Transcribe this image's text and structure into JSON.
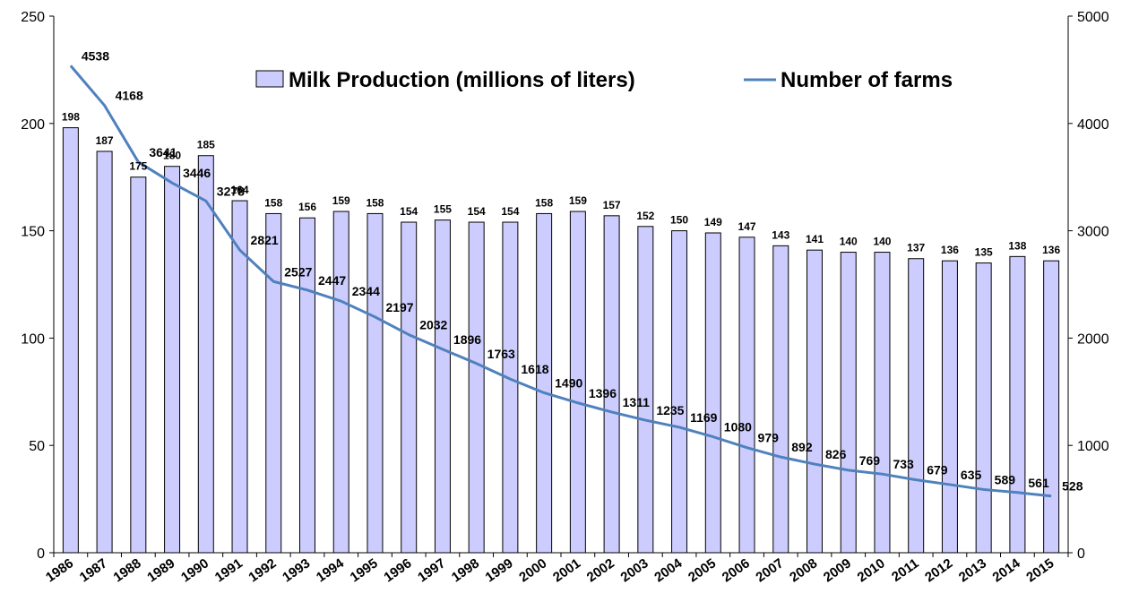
{
  "chart_data": {
    "type": "bar+line",
    "categories": [
      "1986",
      "1987",
      "1988",
      "1989",
      "1990",
      "1991",
      "1992",
      "1993",
      "1994",
      "1995",
      "1996",
      "1997",
      "1998",
      "1999",
      "2000",
      "2001",
      "2002",
      "2003",
      "2004",
      "2005",
      "2006",
      "2007",
      "2008",
      "2009",
      "2010",
      "2011",
      "2012",
      "2013",
      "2014",
      "2015"
    ],
    "series": [
      {
        "name": "Milk Production (millions of liters)",
        "type": "bar",
        "axis": "left",
        "color": "#ccccff",
        "values": [
          198,
          187,
          175,
          180,
          185,
          164,
          158,
          156,
          159,
          158,
          154,
          155,
          154,
          154,
          158,
          159,
          157,
          152,
          150,
          149,
          147,
          143,
          141,
          140,
          140,
          137,
          136,
          135,
          138,
          136
        ]
      },
      {
        "name": "Number of farms",
        "type": "line",
        "axis": "right",
        "color": "#4f81bd",
        "values": [
          4538,
          4168,
          3641,
          3446,
          3278,
          2821,
          2527,
          2447,
          2344,
          2197,
          2032,
          1896,
          1763,
          1618,
          1490,
          1396,
          1311,
          1235,
          1169,
          1080,
          979,
          892,
          826,
          769,
          733,
          679,
          635,
          589,
          561,
          528
        ]
      }
    ],
    "y_left": {
      "min": 0,
      "max": 250,
      "ticks": [
        "0",
        "50",
        "100",
        "150",
        "200",
        "250"
      ]
    },
    "y_right": {
      "min": 0,
      "max": 5000,
      "ticks": [
        "0",
        "1000",
        "2000",
        "3000",
        "4000",
        "5000"
      ]
    },
    "grid": false,
    "legend": {
      "placement": "top-center"
    }
  }
}
